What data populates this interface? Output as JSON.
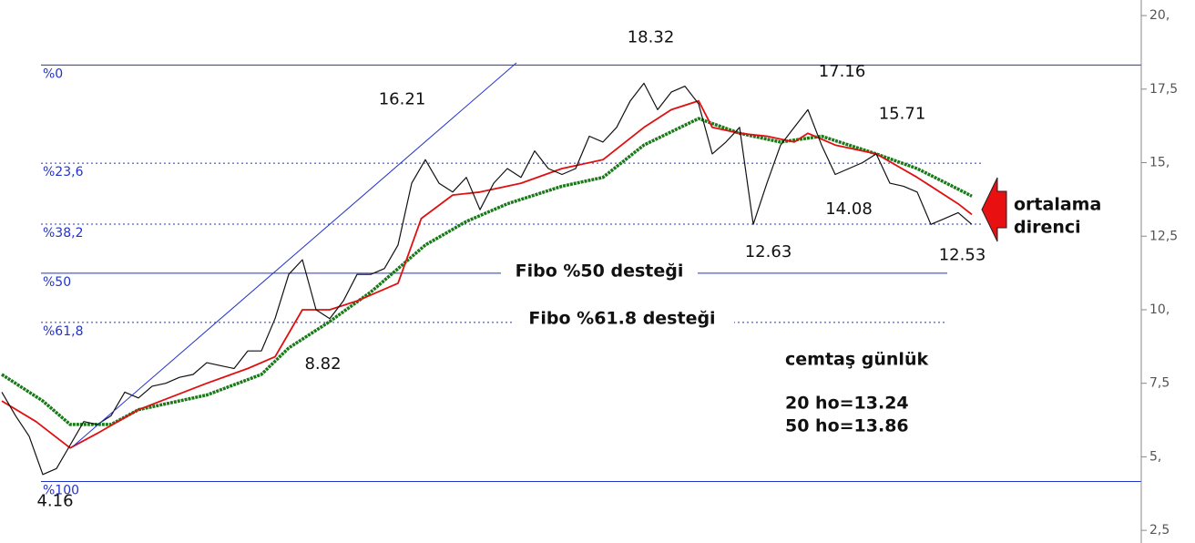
{
  "chart_data": {
    "type": "line",
    "ylim": [
      2.07,
      20.53
    ],
    "xlim": [
      0,
      83
    ],
    "yticks": [
      {
        "value": 2.5,
        "label": "2,5"
      },
      {
        "value": 5,
        "label": "5,"
      },
      {
        "value": 7.5,
        "label": "7,5"
      },
      {
        "value": 10,
        "label": "10,"
      },
      {
        "value": 12.5,
        "label": "12,5"
      },
      {
        "value": 15,
        "label": "15,"
      },
      {
        "value": 17.5,
        "label": "17,5"
      },
      {
        "value": 20,
        "label": "20,"
      }
    ],
    "series": [
      {
        "color": "#111111",
        "x": [
          0,
          1,
          2,
          3,
          4,
          5,
          6,
          7,
          8,
          9,
          10,
          11,
          12,
          13,
          14,
          15,
          16,
          17,
          18,
          19,
          20,
          21,
          22,
          23,
          24,
          25,
          26,
          27,
          28,
          29,
          30,
          31,
          32,
          33,
          34,
          35,
          36,
          37,
          38,
          39,
          40,
          41,
          42,
          43,
          44,
          45,
          46,
          47,
          48,
          49,
          50,
          51,
          52,
          53,
          54,
          55,
          56,
          57,
          58,
          59,
          60,
          61,
          62,
          63,
          64,
          65,
          66,
          67,
          68,
          69,
          70,
          71
        ],
        "values": [
          7.2,
          6.4,
          5.7,
          4.4,
          4.6,
          5.4,
          6.2,
          6.1,
          6.4,
          7.2,
          7.0,
          7.4,
          7.5,
          7.7,
          7.8,
          8.2,
          8.1,
          8.0,
          8.6,
          8.6,
          9.7,
          11.2,
          11.7,
          10.0,
          9.7,
          10.3,
          11.2,
          11.2,
          11.4,
          12.2,
          14.3,
          15.1,
          14.3,
          14.0,
          14.5,
          13.4,
          14.3,
          14.8,
          14.5,
          15.4,
          14.8,
          14.6,
          14.8,
          15.9,
          15.7,
          16.2,
          17.1,
          17.7,
          16.8,
          17.4,
          17.6,
          17.0,
          15.3,
          15.7,
          16.2,
          12.9,
          14.3,
          15.6,
          16.2,
          16.8,
          15.6,
          14.6,
          14.8,
          15.0,
          15.3,
          14.3,
          14.2,
          14.0,
          12.9,
          13.1,
          13.3,
          12.9
        ]
      },
      {
        "color": "#e01010",
        "x": [
          0,
          2.5,
          5,
          7,
          10,
          15,
          18,
          20,
          22,
          24,
          26,
          29,
          30.7,
          33,
          35,
          38,
          41,
          44,
          47,
          49,
          51,
          52,
          54,
          56,
          58,
          59,
          61,
          64,
          67,
          70,
          71
        ],
        "values": [
          6.9,
          6.2,
          5.3,
          5.8,
          6.6,
          7.5,
          8.0,
          8.4,
          10.0,
          10.0,
          10.3,
          10.9,
          13.1,
          13.9,
          14.0,
          14.3,
          14.8,
          15.1,
          16.2,
          16.8,
          17.1,
          16.2,
          16.0,
          15.9,
          15.7,
          16.0,
          15.6,
          15.3,
          14.5,
          13.6,
          13.24
        ]
      },
      {
        "color": "#1a7a1a",
        "x": [
          0,
          3,
          5,
          8,
          10,
          15,
          19,
          21,
          24,
          27,
          29,
          31,
          34,
          37,
          41,
          44,
          47,
          51,
          54,
          57,
          60,
          64,
          67,
          70,
          71
        ],
        "values": [
          7.8,
          6.9,
          6.1,
          6.1,
          6.6,
          7.1,
          7.8,
          8.7,
          9.6,
          10.6,
          11.4,
          12.2,
          13.0,
          13.6,
          14.2,
          14.5,
          15.6,
          16.5,
          16.0,
          15.7,
          15.9,
          15.3,
          14.8,
          14.1,
          13.86
        ]
      }
    ],
    "fib_levels": [
      {
        "label": "%0",
        "value": 18.32,
        "style": "solid"
      },
      {
        "label": "%23,6",
        "value": 14.98,
        "style": "dashed"
      },
      {
        "label": "%38,2",
        "value": 12.91,
        "style": "dashed"
      },
      {
        "label": "%50",
        "value": 11.24,
        "style": "solid"
      },
      {
        "label": "%61,8",
        "value": 9.57,
        "style": "dashed"
      },
      {
        "label": "%100",
        "value": 4.16,
        "style": "solid"
      }
    ],
    "price_labels": [
      {
        "x": 47.5,
        "value": 18.32,
        "position": "above"
      },
      {
        "x": 29.3,
        "value": 16.21,
        "position": "above"
      },
      {
        "x": 23.5,
        "value": 8.82,
        "position": "below"
      },
      {
        "x": 3.9,
        "value": 4.16,
        "position": "below"
      },
      {
        "x": 61.5,
        "value": 17.16,
        "position": "above"
      },
      {
        "x": 65.9,
        "value": 15.71,
        "position": "above"
      },
      {
        "x": 62,
        "value": 14.08,
        "position": "below"
      },
      {
        "x": 56.1,
        "value": 12.63,
        "position": "below"
      },
      {
        "x": 70.3,
        "value": 12.53,
        "position": "below"
      }
    ],
    "annotations": {
      "fibo50": "Fibo %50 desteği",
      "fibo618": "Fibo %61.8 desteği",
      "title": "cemtaş günlük",
      "ma20": "20 ho=13.24",
      "ma50": "50 ho=13.86",
      "resistance1": "ortalama",
      "resistance2": "direnci"
    }
  }
}
